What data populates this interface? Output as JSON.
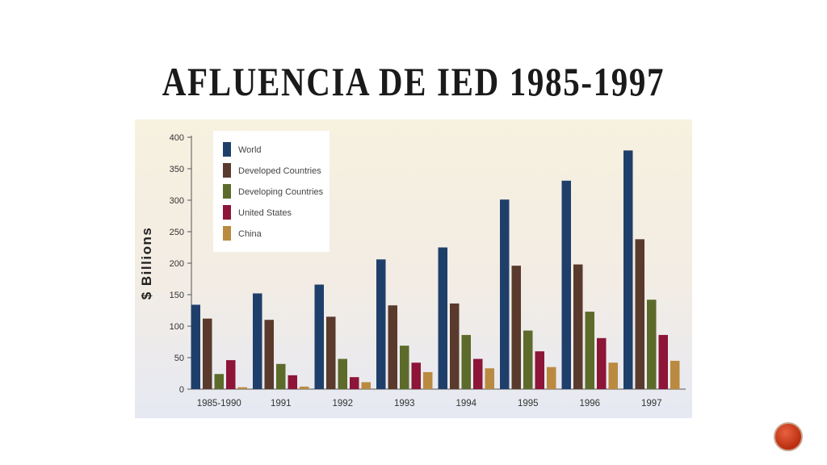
{
  "slide": {
    "title": "AFLUENCIA DE IED 1985-1997",
    "number": ""
  },
  "chart_data": {
    "type": "bar",
    "title": "",
    "xlabel": "",
    "ylabel": "$ Billions",
    "ylim": [
      0,
      400
    ],
    "yticks": [
      0,
      50,
      100,
      150,
      200,
      250,
      300,
      350,
      400
    ],
    "categories": [
      "1985-1990",
      "1991",
      "1992",
      "1993",
      "1994",
      "1995",
      "1996",
      "1997"
    ],
    "legend_position": "top-left",
    "grid": false,
    "series": [
      {
        "name": "World",
        "color": "#1f3f6b",
        "values": [
          134,
          152,
          166,
          206,
          225,
          301,
          331,
          379
        ]
      },
      {
        "name": "Developed Countries",
        "color": "#5a3a2c",
        "values": [
          112,
          110,
          115,
          133,
          136,
          196,
          198,
          238
        ]
      },
      {
        "name": "Developing Countries",
        "color": "#5c6b2a",
        "values": [
          24,
          40,
          48,
          69,
          86,
          93,
          123,
          142
        ]
      },
      {
        "name": "United States",
        "color": "#8c1538",
        "values": [
          46,
          22,
          19,
          42,
          48,
          60,
          81,
          86
        ]
      },
      {
        "name": "China",
        "color": "#b98a40",
        "values": [
          3,
          4,
          11,
          27,
          33,
          35,
          42,
          45
        ]
      }
    ]
  }
}
